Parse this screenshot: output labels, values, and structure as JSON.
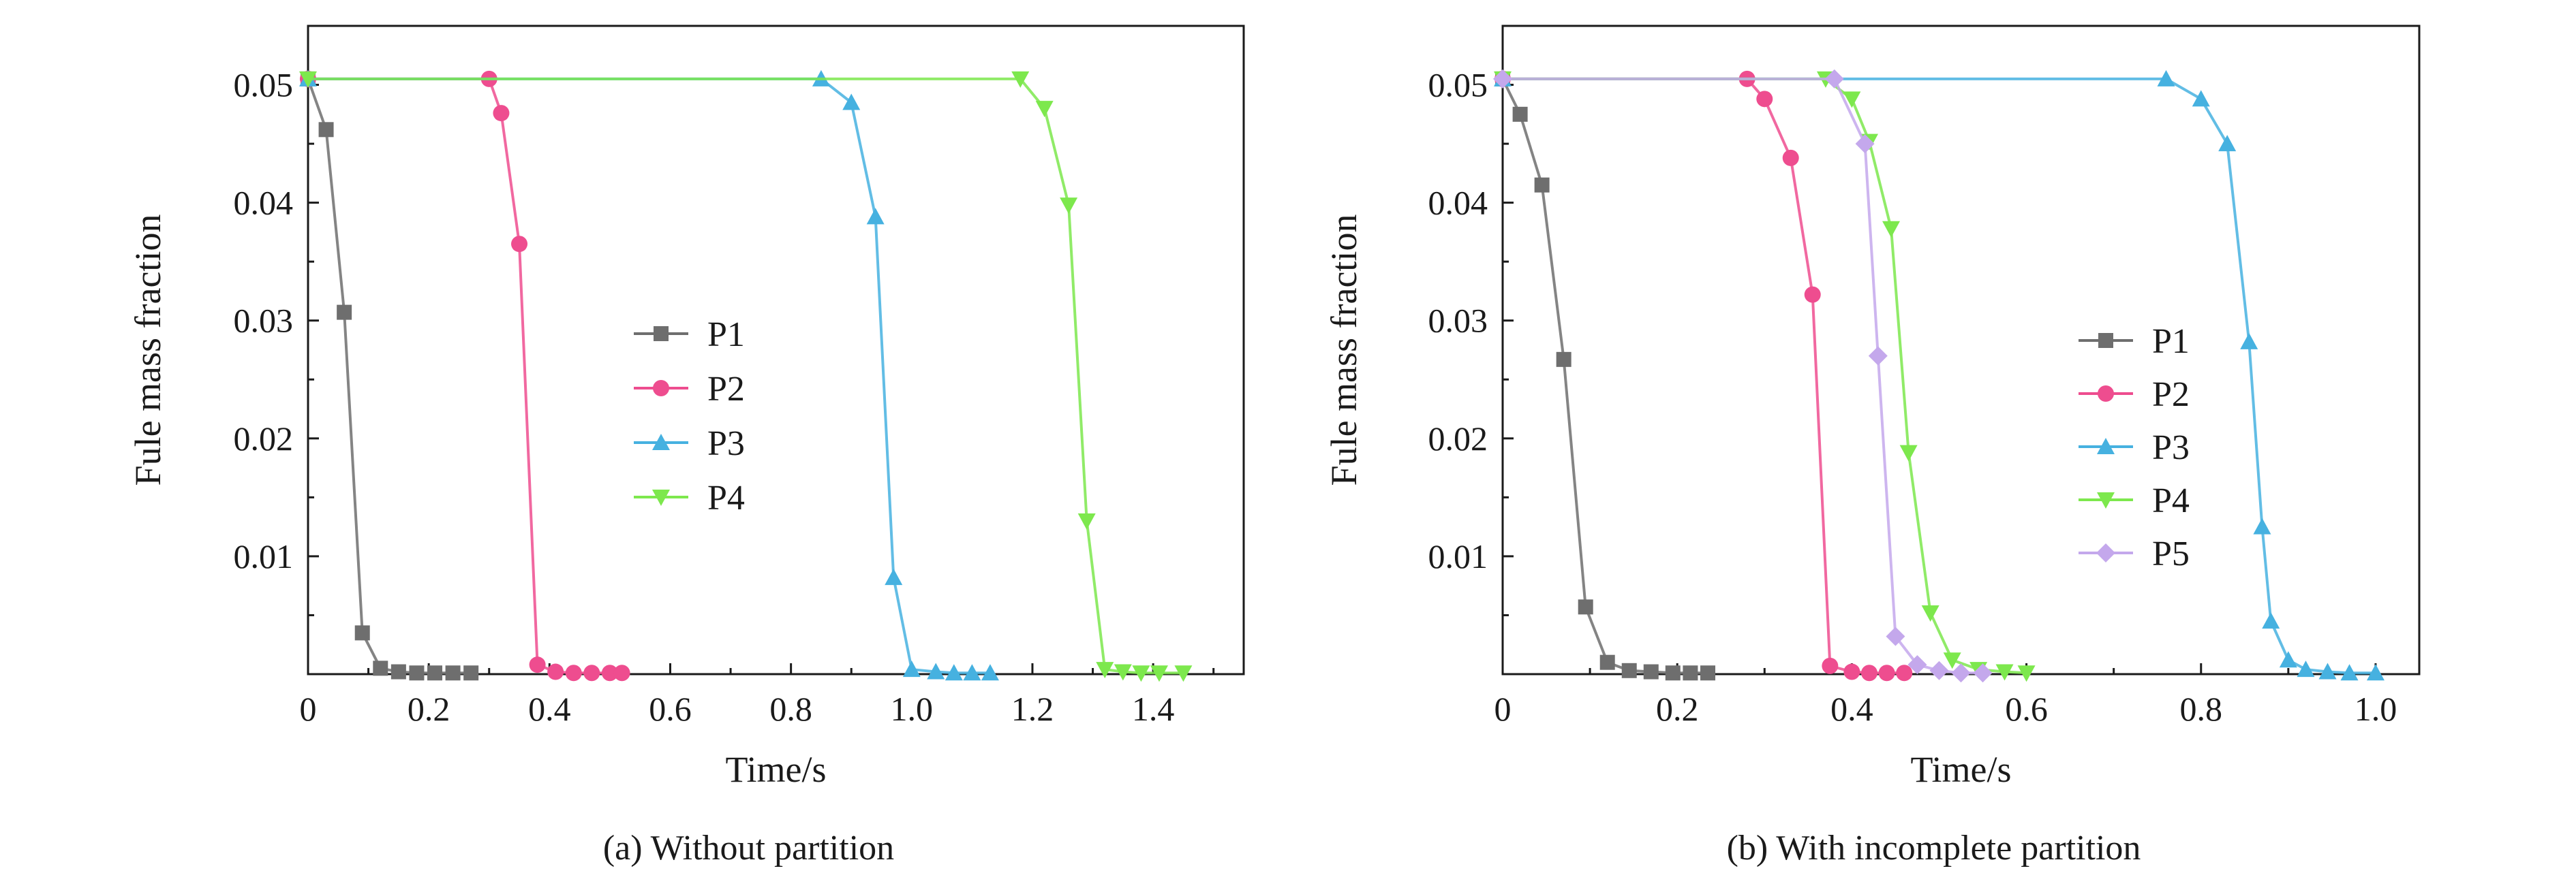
{
  "chart_data": [
    {
      "type": "line",
      "caption": "(a) Without partition",
      "xlabel": "Time/s",
      "ylabel": "Fule mass fraction",
      "xlim": [
        0,
        1.55
      ],
      "ylim": [
        0,
        0.055
      ],
      "x_ticks": [
        "0",
        "0.2",
        "0.4",
        "0.6",
        "0.8",
        "1.0",
        "1.2",
        "1.4"
      ],
      "y_ticks": [
        "0.01",
        "0.02",
        "0.03",
        "0.04",
        "0.05"
      ],
      "grid": false,
      "legend_position": "center",
      "series": [
        {
          "name": "P1",
          "color": "#6e6e6e",
          "marker": "square",
          "x": [
            0,
            0.03,
            0.06,
            0.09,
            0.12,
            0.15,
            0.18,
            0.21,
            0.24,
            0.27
          ],
          "y": [
            0.0505,
            0.0462,
            0.0307,
            0.0035,
            0.0005,
            0.0002,
            0.0001,
            0.0001,
            0.0001,
            0.0001
          ]
        },
        {
          "name": "P2",
          "color": "#ee4d8f",
          "marker": "circle",
          "x": [
            0,
            0.3,
            0.32,
            0.35,
            0.38,
            0.41,
            0.44,
            0.47,
            0.5,
            0.52
          ],
          "y": [
            0.0505,
            0.0505,
            0.0476,
            0.0365,
            0.0008,
            0.0002,
            0.0001,
            0.0001,
            0.0001,
            0.0001
          ]
        },
        {
          "name": "P3",
          "color": "#46b1e0",
          "marker": "triangle-up",
          "x": [
            0,
            0.85,
            0.9,
            0.94,
            0.97,
            1.0,
            1.04,
            1.07,
            1.1,
            1.13
          ],
          "y": [
            0.0505,
            0.0505,
            0.0485,
            0.0388,
            0.0082,
            0.0004,
            0.0002,
            0.0001,
            0.0001,
            0.0001
          ]
        },
        {
          "name": "P4",
          "color": "#7de84d",
          "marker": "triangle-down",
          "x": [
            0,
            1.18,
            1.22,
            1.26,
            1.29,
            1.32,
            1.35,
            1.38,
            1.41,
            1.45
          ],
          "y": [
            0.0505,
            0.0505,
            0.048,
            0.0398,
            0.013,
            0.0004,
            0.0002,
            0.0001,
            0.0001,
            0.0001
          ]
        }
      ]
    },
    {
      "type": "line",
      "caption": "(b) With incomplete partition",
      "xlabel": "Time/s",
      "ylabel": "Fule mass fraction",
      "xlim": [
        0,
        1.05
      ],
      "ylim": [
        0,
        0.055
      ],
      "x_ticks": [
        "0",
        "0.2",
        "0.4",
        "0.6",
        "0.8",
        "1.0"
      ],
      "y_ticks": [
        "0.01",
        "0.02",
        "0.03",
        "0.04",
        "0.05"
      ],
      "grid": false,
      "legend_position": "right",
      "series": [
        {
          "name": "P1",
          "color": "#6e6e6e",
          "marker": "square",
          "x": [
            0,
            0.02,
            0.045,
            0.07,
            0.095,
            0.12,
            0.145,
            0.17,
            0.195,
            0.215,
            0.235
          ],
          "y": [
            0.0505,
            0.0475,
            0.0415,
            0.0267,
            0.0057,
            0.001,
            0.0003,
            0.0002,
            0.0001,
            0.0001,
            0.0001
          ]
        },
        {
          "name": "P2",
          "color": "#ee4d8f",
          "marker": "circle",
          "x": [
            0,
            0.28,
            0.3,
            0.33,
            0.355,
            0.375,
            0.4,
            0.42,
            0.44,
            0.46
          ],
          "y": [
            0.0505,
            0.0505,
            0.0488,
            0.0438,
            0.0322,
            0.0007,
            0.0002,
            0.0001,
            0.0001,
            0.0001
          ]
        },
        {
          "name": "P3",
          "color": "#46b1e0",
          "marker": "triangle-up",
          "x": [
            0,
            0.76,
            0.8,
            0.83,
            0.855,
            0.87,
            0.88,
            0.9,
            0.92,
            0.945,
            0.97,
            1.0
          ],
          "y": [
            0.0505,
            0.0505,
            0.0488,
            0.045,
            0.0282,
            0.0125,
            0.0045,
            0.0012,
            0.0004,
            0.0002,
            0.0001,
            0.0001
          ]
        },
        {
          "name": "P4",
          "color": "#7de84d",
          "marker": "triangle-down",
          "x": [
            0,
            0.37,
            0.4,
            0.42,
            0.445,
            0.465,
            0.49,
            0.515,
            0.545,
            0.575,
            0.6
          ],
          "y": [
            0.0505,
            0.0505,
            0.0488,
            0.0452,
            0.0378,
            0.0188,
            0.0052,
            0.0012,
            0.0004,
            0.0002,
            0.0001
          ]
        },
        {
          "name": "P5",
          "color": "#c4a8ec",
          "marker": "diamond",
          "x": [
            0,
            0.38,
            0.415,
            0.43,
            0.45,
            0.475,
            0.5,
            0.525,
            0.55
          ],
          "y": [
            0.0505,
            0.0505,
            0.045,
            0.027,
            0.0032,
            0.0008,
            0.0003,
            0.0001,
            0.0001
          ]
        }
      ]
    }
  ]
}
